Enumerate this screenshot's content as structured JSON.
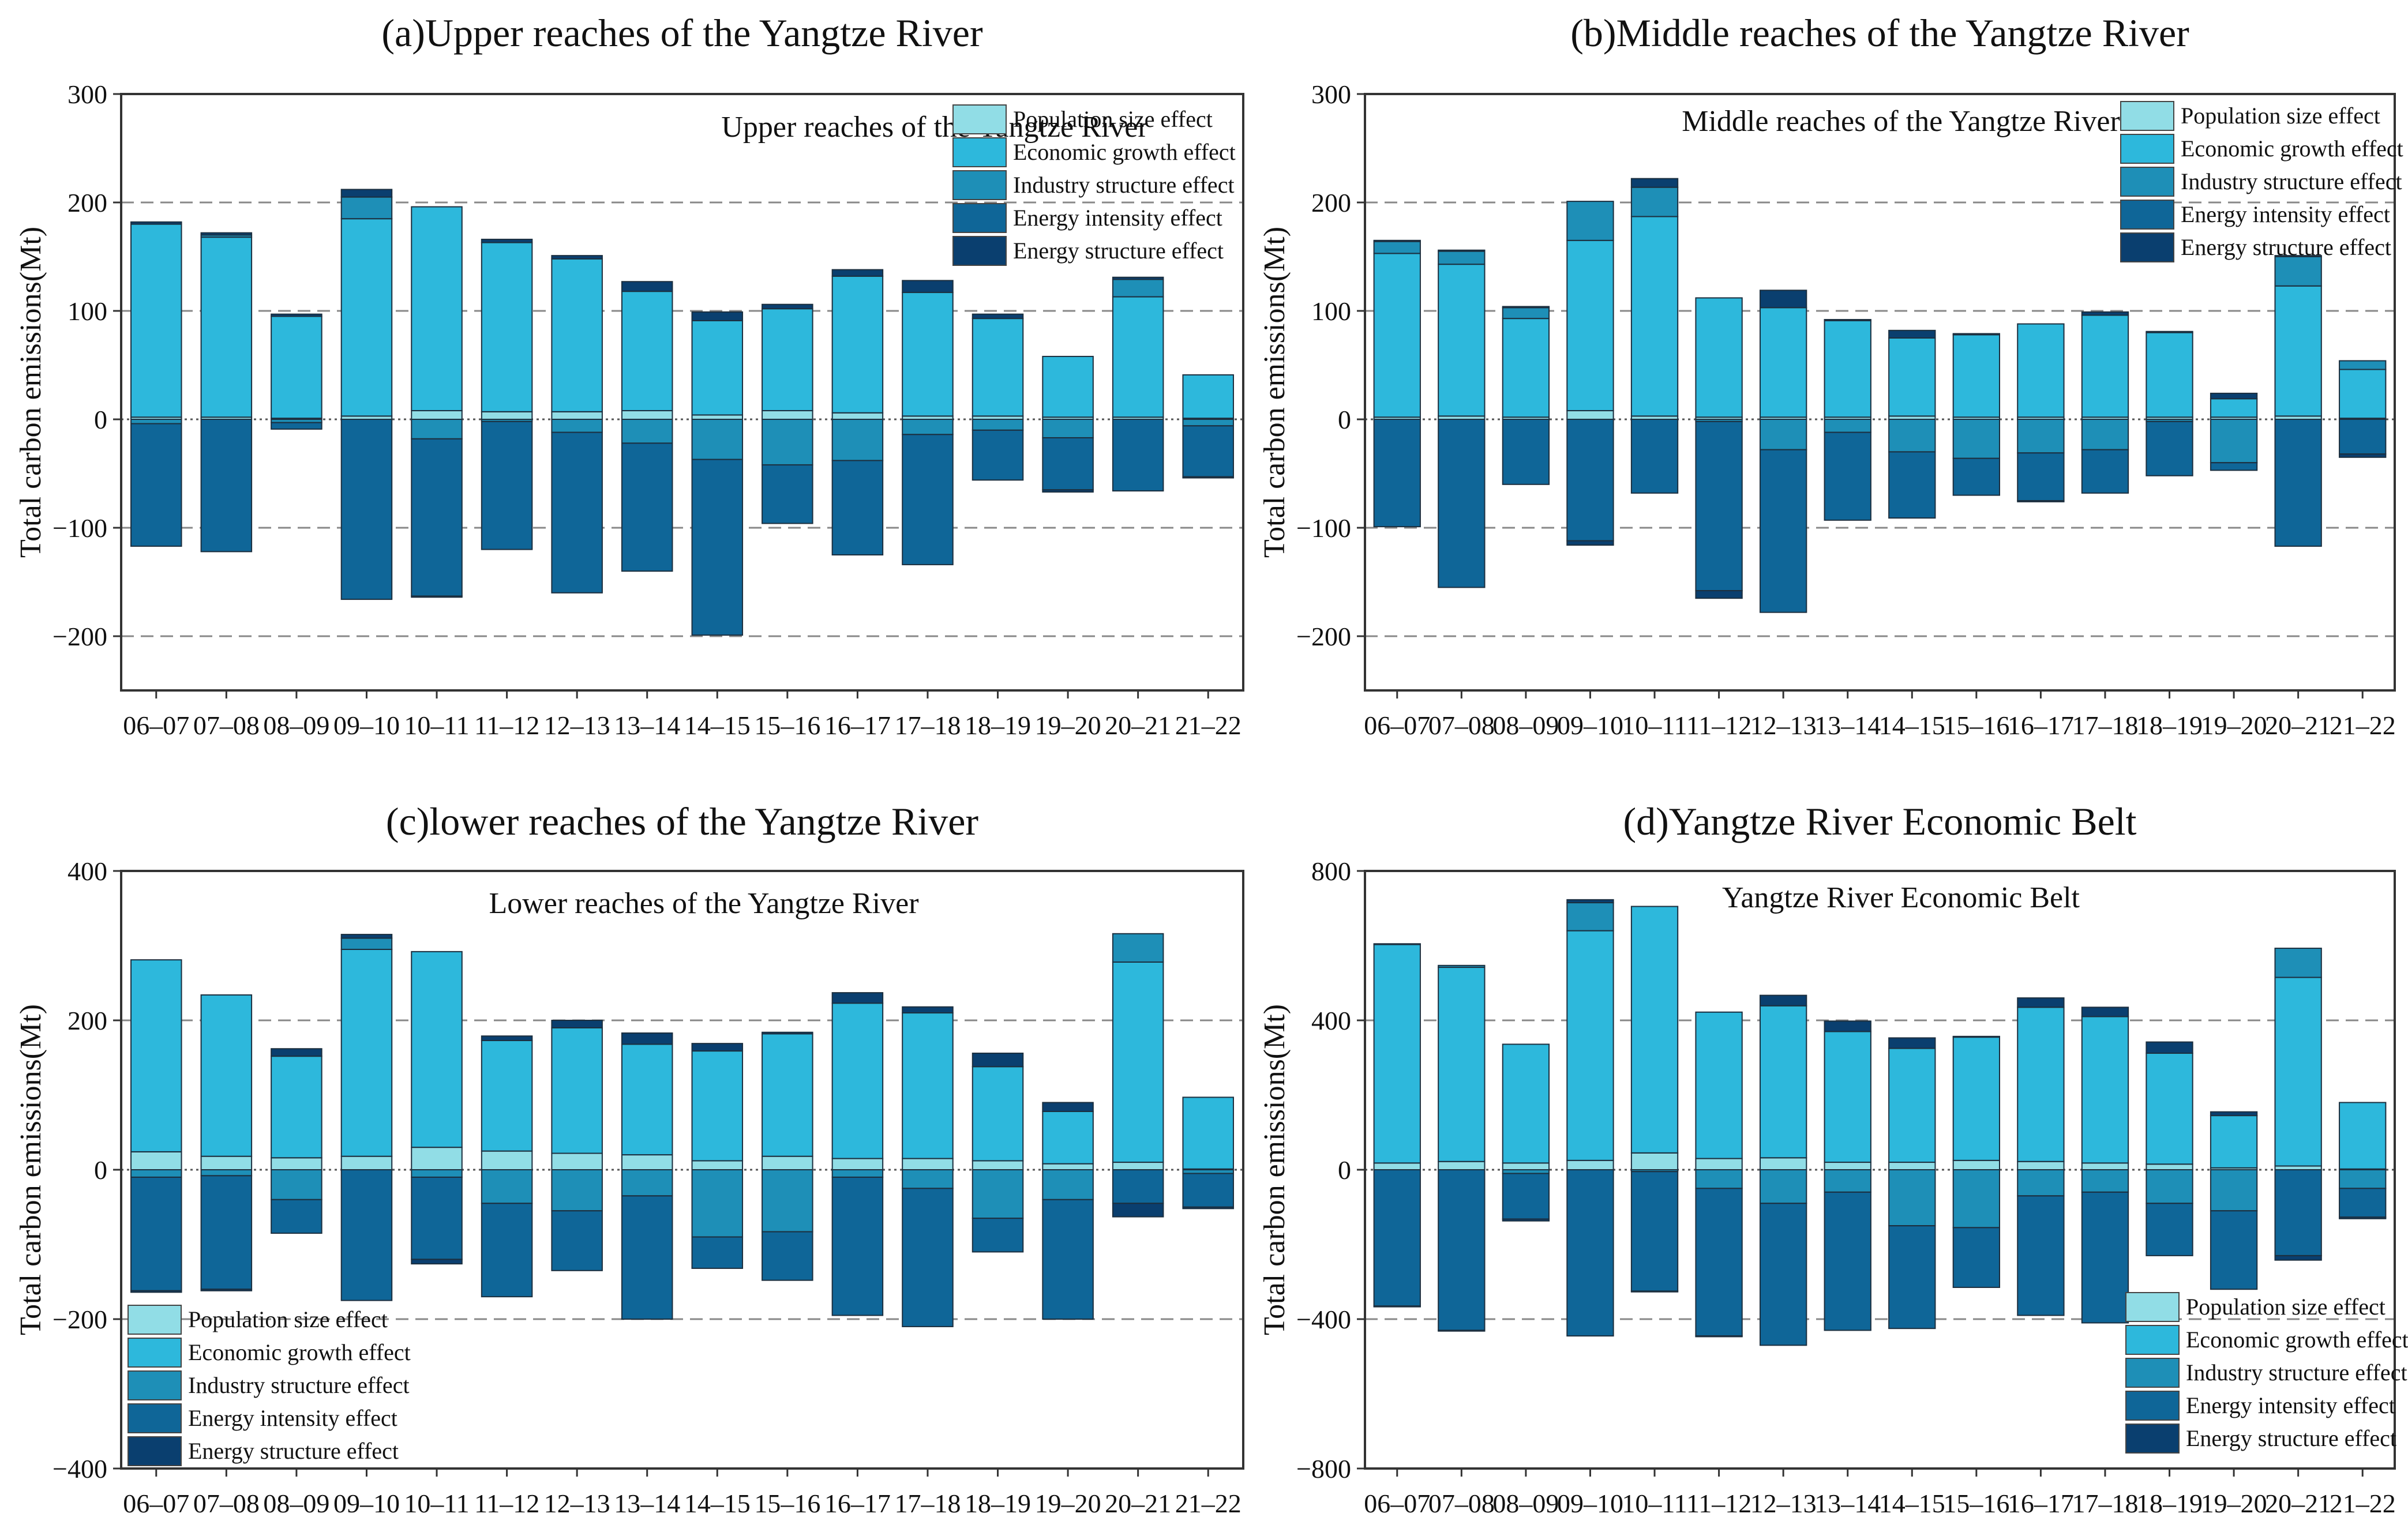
{
  "colors": {
    "population": "#91dde6",
    "economic": "#2db8dc",
    "industry": "#1e8fb7",
    "intensity": "#0f6698",
    "structure": "#0a3f6f",
    "frame": "#333333",
    "gridline": "#888888"
  },
  "chart_data": [
    {
      "id": "a",
      "type": "bar",
      "stacked": true,
      "title": "(a)Upper reaches of the Yangtze River",
      "annotation": "Upper reaches of the Yangtze River",
      "ylabel": "Total carbon emissions(Mt)",
      "xlabel": "",
      "ylim": [
        -250,
        300
      ],
      "yticks": [
        -200,
        -100,
        0,
        100,
        200,
        300
      ],
      "grid": "dashed horizontal at ticks",
      "legend_position": "top-right",
      "categories": [
        "06–07",
        "07–08",
        "08–09",
        "09–10",
        "10–11",
        "11–12",
        "12–13",
        "13–14",
        "14–15",
        "15–16",
        "16–17",
        "17–18",
        "18–19",
        "19–20",
        "20–21",
        "21–22"
      ],
      "series": [
        {
          "name": "Population size effect",
          "key": "population",
          "values": [
            2,
            2,
            1,
            3,
            8,
            7,
            7,
            8,
            4,
            8,
            6,
            3,
            3,
            2,
            2,
            1
          ]
        },
        {
          "name": "Economic growth effect",
          "key": "economic",
          "values": [
            178,
            166,
            94,
            182,
            188,
            156,
            141,
            110,
            87,
            94,
            126,
            114,
            90,
            56,
            111,
            40
          ]
        },
        {
          "name": "Industry structure effect",
          "key": "industry",
          "values": [
            -4,
            2,
            -3,
            20,
            -18,
            -2,
            -12,
            -22,
            -37,
            -42,
            -38,
            -14,
            -10,
            -17,
            16,
            -6
          ]
        },
        {
          "name": "Energy intensity effect",
          "key": "intensity",
          "values": [
            -113,
            -122,
            -6,
            -166,
            -145,
            -118,
            -148,
            -118,
            -162,
            -54,
            -87,
            -120,
            -46,
            -48,
            -66,
            -47
          ]
        },
        {
          "name": "Energy structure effect",
          "key": "structure",
          "values": [
            2,
            2,
            2,
            7,
            -1,
            3,
            3,
            9,
            8,
            4,
            6,
            11,
            4,
            -2,
            2,
            -1
          ]
        }
      ]
    },
    {
      "id": "b",
      "type": "bar",
      "stacked": true,
      "title": "(b)Middle reaches of the Yangtze River",
      "annotation": "Middle reaches of the Yangtze River",
      "ylabel": "Total carbon emissions(Mt)",
      "xlabel": "",
      "ylim": [
        -250,
        300
      ],
      "yticks": [
        -200,
        -100,
        0,
        100,
        200,
        300
      ],
      "grid": "dashed horizontal at ticks",
      "legend_position": "top-right",
      "categories": [
        "06–07",
        "07–08",
        "08–09",
        "09–10",
        "10–11",
        "11–12",
        "12–13",
        "13–14",
        "14–15",
        "15–16",
        "16–17",
        "17–18",
        "18–19",
        "19–20",
        "20–21",
        "21–22"
      ],
      "series": [
        {
          "name": "Population size effect",
          "key": "population",
          "values": [
            2,
            3,
            2,
            8,
            3,
            2,
            2,
            2,
            3,
            2,
            2,
            2,
            2,
            2,
            3,
            1
          ]
        },
        {
          "name": "Economic growth effect",
          "key": "economic",
          "values": [
            151,
            140,
            91,
            157,
            184,
            110,
            101,
            89,
            72,
            76,
            86,
            94,
            78,
            17,
            120,
            45
          ]
        },
        {
          "name": "Industry structure effect",
          "key": "industry",
          "values": [
            11,
            12,
            10,
            36,
            27,
            -2,
            -28,
            -12,
            -30,
            -36,
            -31,
            -28,
            -2,
            -40,
            27,
            8
          ]
        },
        {
          "name": "Energy intensity effect",
          "key": "intensity",
          "values": [
            -99,
            -155,
            -60,
            -112,
            -68,
            -156,
            -150,
            -81,
            -61,
            -34,
            -44,
            -40,
            -50,
            -7,
            -117,
            -32
          ]
        },
        {
          "name": "Energy structure effect",
          "key": "structure",
          "values": [
            1,
            1,
            1,
            -4,
            8,
            -7,
            16,
            1,
            7,
            1,
            -1,
            3,
            1,
            5,
            1,
            -3
          ]
        }
      ]
    },
    {
      "id": "c",
      "type": "bar",
      "stacked": true,
      "title": "(c)lower reaches of the Yangtze River",
      "annotation": "Lower reaches of the Yangtze River",
      "ylabel": "Total carbon emissions(Mt)",
      "xlabel": "",
      "ylim": [
        -400,
        400
      ],
      "yticks": [
        -400,
        -200,
        0,
        200,
        400
      ],
      "grid": "dashed horizontal at ticks",
      "legend_position": "bottom-left",
      "categories": [
        "06–07",
        "07–08",
        "08–09",
        "09–10",
        "10–11",
        "11–12",
        "12–13",
        "13–14",
        "14–15",
        "15–16",
        "16–17",
        "17–18",
        "18–19",
        "19–20",
        "20–21",
        "21–22"
      ],
      "series": [
        {
          "name": "Population size effect",
          "key": "population",
          "values": [
            24,
            18,
            16,
            18,
            30,
            25,
            22,
            20,
            12,
            18,
            15,
            15,
            12,
            8,
            10,
            1
          ]
        },
        {
          "name": "Economic growth effect",
          "key": "economic",
          "values": [
            257,
            216,
            136,
            277,
            262,
            148,
            168,
            148,
            147,
            164,
            208,
            195,
            126,
            70,
            268,
            96
          ]
        },
        {
          "name": "Industry structure effect",
          "key": "industry",
          "values": [
            -10,
            -8,
            -40,
            15,
            -10,
            -45,
            -55,
            -35,
            -90,
            -83,
            -10,
            -25,
            -65,
            -40,
            38,
            -5
          ]
        },
        {
          "name": "Energy intensity effect",
          "key": "intensity",
          "values": [
            -152,
            -152,
            -45,
            -175,
            -110,
            -125,
            -80,
            -165,
            -42,
            -65,
            -185,
            -185,
            -45,
            -160,
            -45,
            -45
          ]
        },
        {
          "name": "Energy structure effect",
          "key": "structure",
          "values": [
            -2,
            -2,
            10,
            5,
            -6,
            6,
            10,
            15,
            10,
            2,
            14,
            8,
            18,
            12,
            -18,
            -2
          ]
        }
      ]
    },
    {
      "id": "d",
      "type": "bar",
      "stacked": true,
      "title": "(d)Yangtze River Economic Belt",
      "annotation": "Yangtze River Economic Belt",
      "ylabel": "Total carbon emissions(Mt)",
      "xlabel": "",
      "ylim": [
        -800,
        800
      ],
      "yticks": [
        -800,
        -400,
        0,
        400,
        800
      ],
      "grid": "dashed horizontal at ticks",
      "legend_position": "bottom-right",
      "categories": [
        "06–07",
        "07–08",
        "08–09",
        "09–10",
        "10–11",
        "11–12",
        "12–13",
        "13–14",
        "14–15",
        "15–16",
        "16–17",
        "17–18",
        "18–19",
        "19–20",
        "20–21",
        "21–22"
      ],
      "series": [
        {
          "name": "Population size effect",
          "key": "population",
          "values": [
            18,
            22,
            18,
            25,
            45,
            30,
            32,
            20,
            20,
            25,
            22,
            18,
            15,
            5,
            10,
            2
          ]
        },
        {
          "name": "Economic growth effect",
          "key": "economic",
          "values": [
            585,
            520,
            318,
            615,
            660,
            392,
            407,
            350,
            305,
            330,
            413,
            392,
            297,
            140,
            505,
            178
          ]
        },
        {
          "name": "Industry structure effect",
          "key": "industry",
          "values": [
            2,
            5,
            -10,
            75,
            -5,
            -50,
            -90,
            -60,
            -150,
            -155,
            -70,
            -60,
            -90,
            -110,
            78,
            -50
          ]
        },
        {
          "name": "Energy intensity effect",
          "key": "intensity",
          "values": [
            -365,
            -430,
            -122,
            -445,
            -320,
            -395,
            -380,
            -370,
            -275,
            -160,
            -320,
            -350,
            -140,
            -210,
            -230,
            -77
          ]
        },
        {
          "name": "Energy structure effect",
          "key": "structure",
          "values": [
            -2,
            -2,
            -5,
            8,
            -2,
            -2,
            28,
            28,
            28,
            2,
            25,
            25,
            30,
            10,
            -12,
            -4
          ]
        }
      ]
    }
  ]
}
